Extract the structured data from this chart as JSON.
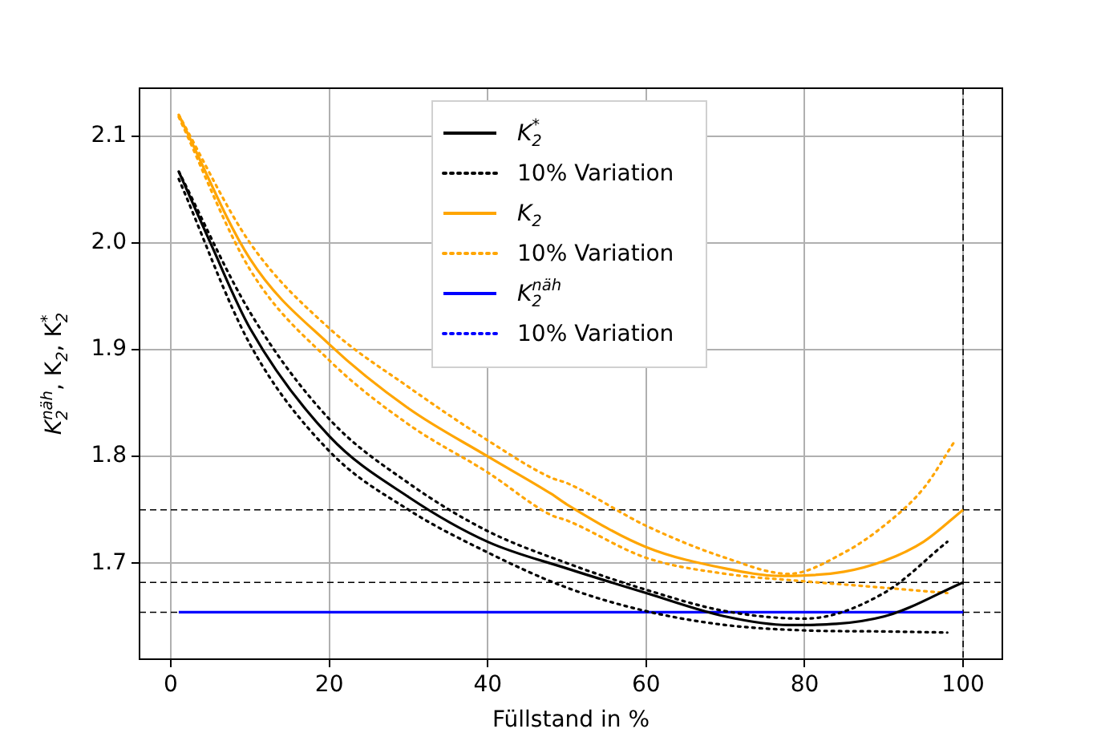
{
  "chart_data": {
    "type": "line",
    "xlabel": "Füllstand in %",
    "ylabel": "K$_{2}$$^{näh}$, K$_{2}$, K$_{2}$$^{*}$",
    "xlim": [
      -3.95,
      104.95
    ],
    "ylim": [
      1.61,
      2.145
    ],
    "xticks": [
      0,
      20,
      40,
      60,
      80,
      100
    ],
    "yticks": [
      1.7,
      1.8,
      1.9,
      {
        "value": 2.0,
        "label": "2.0"
      },
      2.1
    ],
    "grid": true,
    "legend": "top",
    "marker": "none",
    "series": [
      {
        "name": "K$_{2}$$^{*}$",
        "color": "#000000",
        "line_style": "solid",
        "x": [
          1,
          5,
          10,
          20,
          30,
          40,
          50,
          60,
          70,
          78,
          90,
          100
        ],
        "values": [
          2.067,
          2.0,
          1.92,
          1.819,
          1.762,
          1.72,
          1.695,
          1.672,
          1.65,
          1.642,
          1.65,
          1.682
        ]
      },
      {
        "name": "10% Variation",
        "color": "#000000",
        "line_style": "dotted",
        "x": [
          1,
          10,
          20,
          30,
          40,
          50,
          60,
          70,
          80,
          90,
          98
        ],
        "values": [
          2.067,
          1.935,
          1.835,
          1.775,
          1.73,
          1.7,
          1.675,
          1.655,
          1.648,
          1.672,
          1.72
        ]
      },
      {
        "color": "#000000",
        "line_style": "dotted",
        "x": [
          1,
          10,
          20,
          30,
          40,
          50,
          60,
          70,
          80,
          90,
          98
        ],
        "values": [
          2.06,
          1.905,
          1.805,
          1.75,
          1.71,
          1.677,
          1.655,
          1.642,
          1.637,
          1.636,
          1.635
        ]
      },
      {
        "name": "K$_{2}$",
        "color": "#ffa500",
        "line_style": "solid",
        "x": [
          1,
          10,
          20,
          30,
          40,
          48,
          50,
          60,
          70,
          77,
          85,
          90,
          95,
          100
        ],
        "values": [
          2.12,
          1.985,
          1.905,
          1.845,
          1.8,
          1.765,
          1.755,
          1.715,
          1.695,
          1.688,
          1.692,
          1.702,
          1.72,
          1.75
        ]
      },
      {
        "name": "10% Variation",
        "color": "#ffa500",
        "line_style": "dotted",
        "x": [
          1,
          10,
          20,
          30,
          40,
          48,
          50,
          60,
          70,
          78,
          85,
          90,
          95,
          99
        ],
        "values": [
          2.12,
          2.0,
          1.92,
          1.865,
          1.815,
          1.78,
          1.775,
          1.735,
          1.705,
          1.69,
          1.71,
          1.735,
          1.77,
          1.815
        ]
      },
      {
        "color": "#ffa500",
        "line_style": "dotted",
        "x": [
          1,
          10,
          20,
          30,
          40,
          48,
          50,
          60,
          70,
          80,
          90,
          98
        ],
        "values": [
          2.118,
          1.975,
          1.89,
          1.83,
          1.785,
          1.745,
          1.74,
          1.705,
          1.69,
          1.683,
          1.677,
          1.672
        ]
      },
      {
        "name": "K$_{2}$$^{näh}$",
        "color": "#0000ff",
        "line_style": "solid",
        "x": [
          1,
          100
        ],
        "values": [
          1.654,
          1.654
        ]
      },
      {
        "name": "10% Variation",
        "color": "#0000ff",
        "line_style": "dotted"
      }
    ],
    "ref_lines": [
      {
        "axis": "y",
        "value": 1.75,
        "color": "#000000",
        "line_style": "dashed"
      },
      {
        "axis": "y",
        "value": 1.682,
        "color": "#000000",
        "line_style": "dashed"
      },
      {
        "axis": "y",
        "value": 1.654,
        "color": "#000000",
        "line_style": "dashed"
      },
      {
        "axis": "x",
        "value": 100,
        "color": "#000000",
        "line_style": "dashed"
      }
    ]
  }
}
